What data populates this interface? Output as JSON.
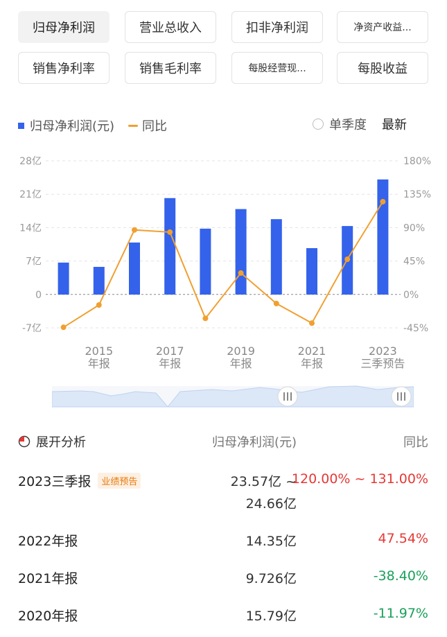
{
  "tabs": [
    {
      "label": "归母净利润",
      "active": true
    },
    {
      "label": "营业总收入",
      "active": false
    },
    {
      "label": "扣非净利润",
      "active": false
    },
    {
      "label": "净资产收益...",
      "active": false
    },
    {
      "label": "销售净利率",
      "active": false
    },
    {
      "label": "销售毛利率",
      "active": false
    },
    {
      "label": "每股经营现...",
      "active": false
    },
    {
      "label": "每股收益",
      "active": false
    }
  ],
  "legend": {
    "bar_label": "归母净利润(元)",
    "line_label": "同比"
  },
  "options": {
    "quarterly_label": "单季度",
    "latest_label": "最新"
  },
  "colors": {
    "bar": "#3462ea",
    "line": "#f0a030",
    "red": "#e53935",
    "green": "#1aa05a",
    "slider_fill": "#dce8f7",
    "slider_line": "#bcd2f0"
  },
  "chart_data": {
    "type": "bar",
    "left_axis_ticks": [
      "28亿",
      "21亿",
      "14亿",
      "7亿",
      "0",
      "-7亿"
    ],
    "right_axis_ticks": [
      "180%",
      "135%",
      "90%",
      "45%",
      "0%",
      "-45%"
    ],
    "ylim_left": [
      -7,
      28
    ],
    "ylim_right": [
      -45,
      180
    ],
    "x_tick_labels": [
      {
        "index": 1,
        "line1": "2015",
        "line2": "年报"
      },
      {
        "index": 3,
        "line1": "2017",
        "line2": "年报"
      },
      {
        "index": 5,
        "line1": "2019",
        "line2": "年报"
      },
      {
        "index": 7,
        "line1": "2021",
        "line2": "年报"
      },
      {
        "index": 9,
        "line1": "2023",
        "line2": "三季预告"
      }
    ],
    "series": [
      {
        "name": "归母净利润(元)",
        "type": "bar",
        "unit": "亿",
        "values": [
          6.7,
          5.8,
          10.9,
          20.2,
          13.8,
          17.9,
          15.79,
          9.726,
          14.35,
          24.1
        ]
      },
      {
        "name": "同比",
        "type": "line",
        "unit": "%",
        "values": [
          -44,
          -14,
          87,
          84,
          -32,
          29,
          -12,
          -38.4,
          47.54,
          125
        ]
      }
    ]
  },
  "table": {
    "header": {
      "expand_label": "展开分析",
      "col_value": "归母净利润(元)",
      "col_yoy": "同比"
    },
    "rows": [
      {
        "period": "2023三季报",
        "badge": "业绩预告",
        "value": "23.57亿 ~",
        "value2": "24.66亿",
        "yoy": "120.00% ~ 131.00%",
        "yoy_color": "red"
      },
      {
        "period": "2022年报",
        "badge": "",
        "value": "14.35亿",
        "value2": "",
        "yoy": "47.54%",
        "yoy_color": "red"
      },
      {
        "period": "2021年报",
        "badge": "",
        "value": "9.726亿",
        "value2": "",
        "yoy": "-38.40%",
        "yoy_color": "green"
      },
      {
        "period": "2020年报",
        "badge": "",
        "value": "15.79亿",
        "value2": "",
        "yoy": "-11.97%",
        "yoy_color": "green"
      }
    ]
  }
}
